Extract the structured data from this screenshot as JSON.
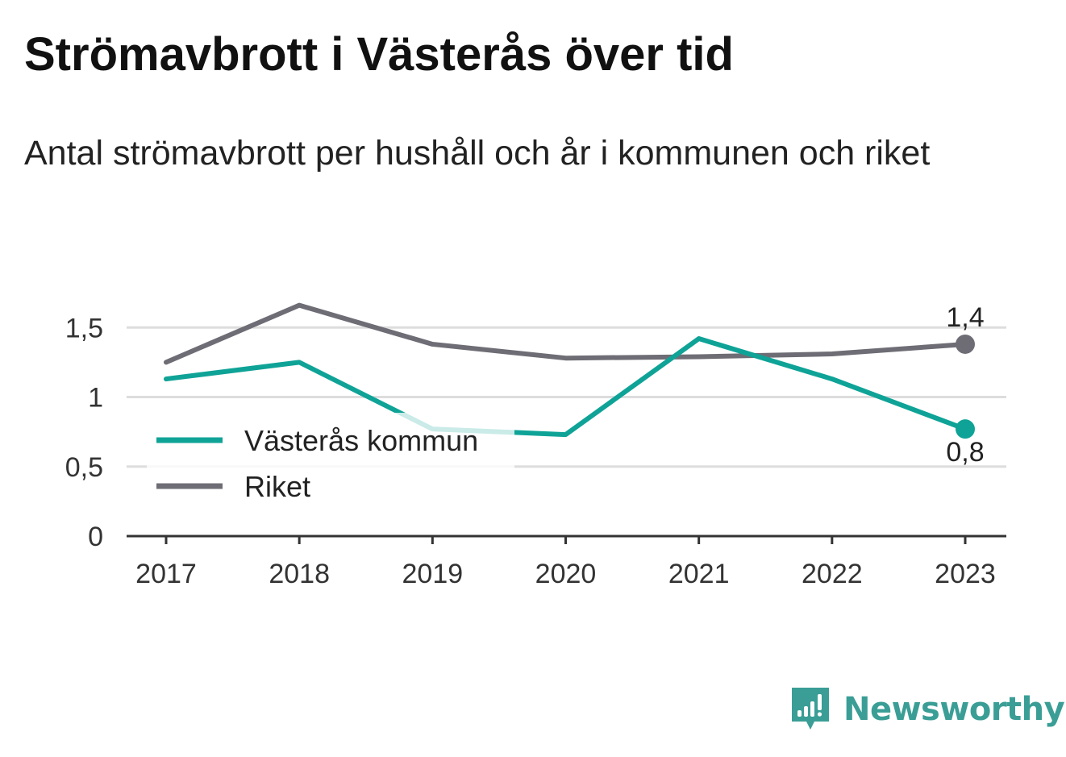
{
  "title": "Strömavbrott i Västerås över tid",
  "subtitle": "Antal strömavbrott per hushåll och år i kommunen och riket",
  "brand": {
    "name": "Newsworthy",
    "icon": "bar-chart-speech-bubble-icon",
    "color": "#3a9e96"
  },
  "chart_data": {
    "type": "line",
    "x": [
      "2017",
      "2018",
      "2019",
      "2020",
      "2021",
      "2022",
      "2023"
    ],
    "yticks": [
      {
        "value": 0,
        "label": "0"
      },
      {
        "value": 0.5,
        "label": "0,5"
      },
      {
        "value": 1,
        "label": "1"
      },
      {
        "value": 1.5,
        "label": "1,5"
      }
    ],
    "ylim": [
      0,
      1.7
    ],
    "grid": true,
    "legend_position": "lower-left",
    "series": [
      {
        "name": "Västerås kommun",
        "color": "#0fa397",
        "values": [
          1.13,
          1.25,
          0.77,
          0.73,
          1.42,
          1.13,
          0.77
        ],
        "end_label": "0,8"
      },
      {
        "name": "Riket",
        "color": "#6e6d75",
        "values": [
          1.25,
          1.66,
          1.38,
          1.28,
          1.29,
          1.31,
          1.38
        ],
        "end_label": "1,4"
      }
    ]
  }
}
